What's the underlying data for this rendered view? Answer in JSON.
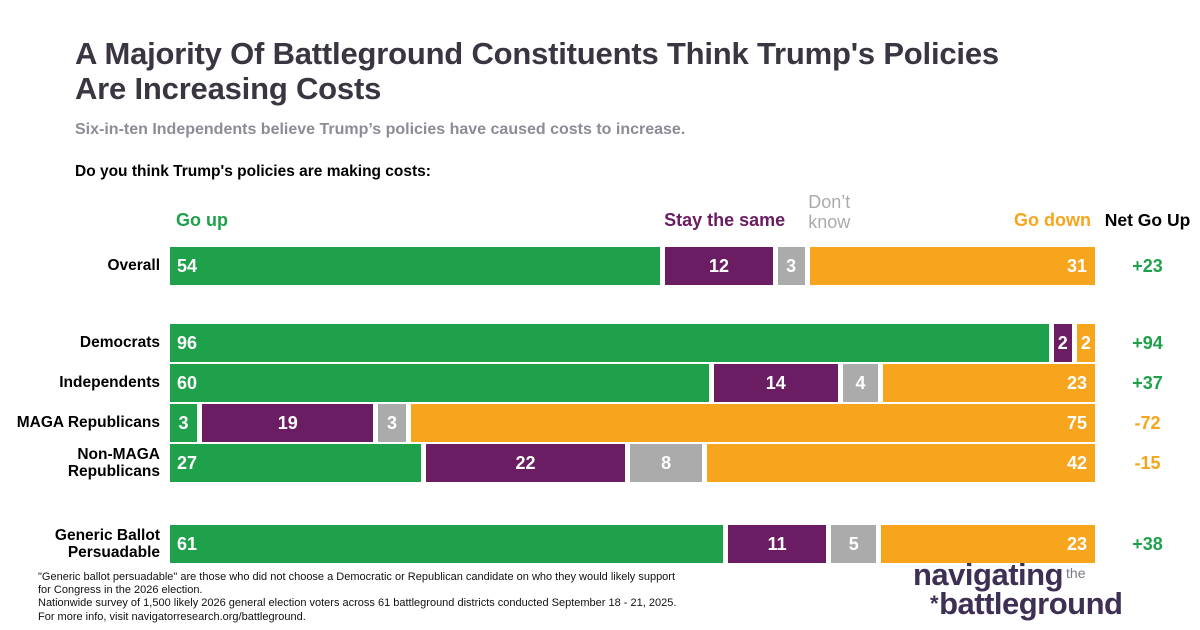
{
  "header": {
    "title": "A Majority Of Battleground Constituents Think Trump's Policies\nAre Increasing Costs",
    "subtitle": "Six-in-ten Independents believe Trump’s policies have caused costs to increase."
  },
  "colors": {
    "go_up_green": "#1FA14C",
    "stay_same_purple": "#6A1D62",
    "dont_know_gray": "#ABABAB",
    "go_down_orange": "#F7A51C",
    "net_positive": "#1FA14C",
    "net_negative": "#F7A51C",
    "title_text": "#3A3540",
    "subtitle_text": "#8E8B96",
    "brand_purple": "#3E2F54",
    "brand_the_gray": "#7C7886"
  },
  "chart_data": {
    "type": "bar",
    "variant": "horizontal-stacked-100",
    "question": "Do you think Trump's policies are making costs:",
    "series": [
      {
        "key": "go_up",
        "label": "Go up",
        "color": "#1FA14C"
      },
      {
        "key": "stay_same",
        "label": "Stay the same",
        "color": "#6A1D62"
      },
      {
        "key": "dont_know",
        "label": "Don’t\nknow",
        "color": "#ABABAB"
      },
      {
        "key": "go_down",
        "label": "Go down",
        "color": "#F7A51C"
      }
    ],
    "net_label": "Net Go Up",
    "axis_range": [
      0,
      100
    ],
    "rows": [
      {
        "label": "Overall",
        "values": [
          54,
          12,
          3,
          31
        ],
        "net": "+23"
      },
      {
        "label": "Democrats",
        "values": [
          96,
          2,
          0,
          2
        ],
        "net": "+94"
      },
      {
        "label": "Independents",
        "values": [
          60,
          14,
          4,
          23
        ],
        "net": "+37"
      },
      {
        "label": "MAGA Republicans",
        "values": [
          3,
          19,
          3,
          75
        ],
        "net": "-72"
      },
      {
        "label": "Non-MAGA\nRepublicans",
        "values": [
          27,
          22,
          8,
          42
        ],
        "net": "-15"
      },
      {
        "label": "Generic Ballot\nPersuadable",
        "values": [
          61,
          11,
          5,
          23
        ],
        "net": "+38"
      }
    ]
  },
  "footnote": "\"Generic ballot persuadable\" are those who did not choose a Democratic or Republican candidate on who they would likely support\nfor Congress in the 2026 election.\nNationwide survey of 1,500 likely 2026 general election voters across 61 battleground districts conducted September 18 - 21, 2025.\nFor more info, visit navigatorresearch.org/battleground.",
  "logo": {
    "line1": "navigating",
    "the": "the",
    "star": "*",
    "line2": "battleground"
  }
}
